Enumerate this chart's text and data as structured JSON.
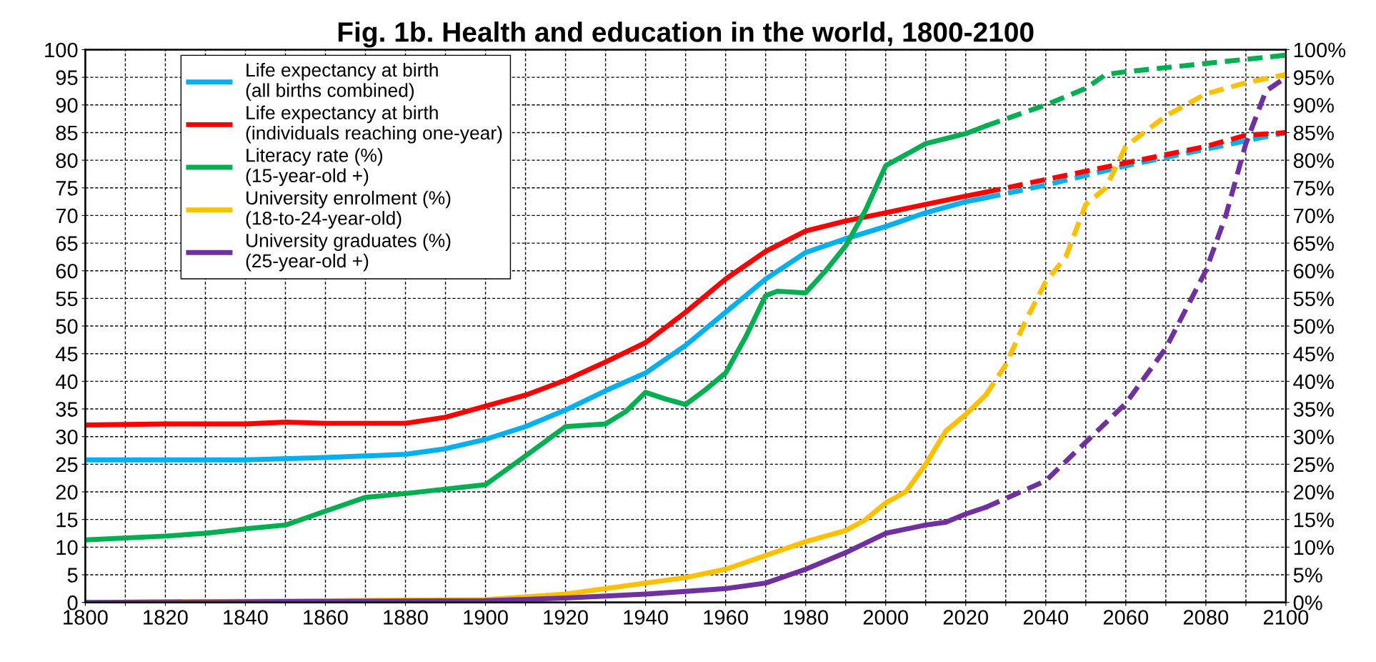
{
  "chart_data": {
    "type": "line",
    "title": "Fig. 1b. Health and education in the world, 1800-2100",
    "xlim": [
      1800,
      2100
    ],
    "xticks": [
      1800,
      {
        "value": 1810,
        "label": null
      },
      1820,
      {
        "value": 1830,
        "label": null
      },
      1840,
      {
        "value": 1850,
        "label": null
      },
      1860,
      {
        "value": 1870,
        "label": null
      },
      1880,
      {
        "value": 1890,
        "label": null
      },
      1900,
      {
        "value": 1910,
        "label": null
      },
      1920,
      {
        "value": 1930,
        "label": null
      },
      1940,
      {
        "value": 1950,
        "label": null
      },
      1960,
      {
        "value": 1970,
        "label": null
      },
      1980,
      {
        "value": 1990,
        "label": null
      },
      2000,
      {
        "value": 2010,
        "label": null
      },
      2020,
      {
        "value": 2030,
        "label": null
      },
      2040,
      {
        "value": 2050,
        "label": null
      },
      2060,
      {
        "value": 2070,
        "label": null
      },
      2080,
      {
        "value": 2090,
        "label": null
      },
      2100
    ],
    "ylim": [
      0,
      100
    ],
    "yticks": [
      0,
      5,
      10,
      15,
      20,
      25,
      30,
      35,
      40,
      45,
      50,
      55,
      60,
      65,
      70,
      75,
      80,
      85,
      90,
      95,
      100
    ],
    "y2lim": [
      0,
      100
    ],
    "y2ticks": [
      {
        "value": 0,
        "label": "0%"
      },
      {
        "value": 5,
        "label": "5%"
      },
      {
        "value": 10,
        "label": "10%"
      },
      {
        "value": 15,
        "label": "15%"
      },
      {
        "value": 20,
        "label": "20%"
      },
      {
        "value": 25,
        "label": "25%"
      },
      {
        "value": 30,
        "label": "30%"
      },
      {
        "value": 35,
        "label": "35%"
      },
      {
        "value": 40,
        "label": "40%"
      },
      {
        "value": 45,
        "label": "45%"
      },
      {
        "value": 50,
        "label": "50%"
      },
      {
        "value": 55,
        "label": "55%"
      },
      {
        "value": 60,
        "label": "60%"
      },
      {
        "value": 65,
        "label": "65%"
      },
      {
        "value": 70,
        "label": "70%"
      },
      {
        "value": 75,
        "label": "75%"
      },
      {
        "value": 80,
        "label": "80%"
      },
      {
        "value": 85,
        "label": "85%"
      },
      {
        "value": 90,
        "label": "90%"
      },
      {
        "value": 95,
        "label": "95%"
      },
      {
        "value": 100,
        "label": "100%"
      }
    ],
    "grid": true,
    "legend": "top left",
    "marker": "none",
    "series": [
      {
        "name": "Life expectancy at birth\n(all births combined)",
        "color": "#00b0f0",
        "line_style": "solid",
        "x": [
          1800,
          1820,
          1840,
          1860,
          1880,
          1890,
          1900,
          1910,
          1920,
          1930,
          1940,
          1950,
          1960,
          1970,
          1980,
          1990,
          2000,
          2010,
          2020,
          2025
        ],
        "values": [
          25.8,
          25.8,
          25.8,
          26.2,
          26.8,
          27.8,
          29.5,
          31.8,
          34.8,
          38.3,
          41.5,
          46.5,
          52.5,
          58.5,
          63.3,
          65.8,
          68,
          70.5,
          72.5,
          73.2
        ]
      },
      {
        "name": "Life expectancy at birth\n(individuals reaching one-year)",
        "color": "#ff0000",
        "line_style": "solid",
        "x": [
          1800,
          1820,
          1840,
          1850,
          1860,
          1880,
          1890,
          1900,
          1910,
          1920,
          1930,
          1940,
          1950,
          1960,
          1970,
          1980,
          1990,
          2000,
          2010,
          2020,
          2025
        ],
        "values": [
          32.1,
          32.3,
          32.3,
          32.6,
          32.4,
          32.4,
          33.5,
          35.5,
          37.5,
          40.2,
          43.5,
          47,
          52.5,
          58.5,
          63.5,
          67.2,
          69,
          70.5,
          72,
          73.5,
          74.2
        ]
      },
      {
        "name": "Literacy rate (%)\n(15-year-old +)",
        "color": "#00b050",
        "line_style": "solid",
        "x": [
          1800,
          1820,
          1830,
          1840,
          1850,
          1860,
          1870,
          1880,
          1890,
          1900,
          1910,
          1920,
          1930,
          1935,
          1940,
          1945,
          1950,
          1955,
          1960,
          1965,
          1970,
          1973,
          1980,
          1985,
          1990,
          1995,
          2000,
          2005,
          2010,
          2020,
          2025
        ],
        "values": [
          11.3,
          12,
          12.5,
          13.3,
          14,
          16.5,
          19,
          19.7,
          20.5,
          21.3,
          26.5,
          31.8,
          32.3,
          34.5,
          38,
          36.8,
          35.8,
          38.5,
          41.5,
          48,
          55.5,
          56.3,
          56,
          60,
          64.5,
          71,
          79,
          81,
          83,
          84.8,
          86.2
        ]
      },
      {
        "name": "University enrolment (%)\n(18-to-24-year-old)",
        "color": "#ffc000",
        "line_style": "solid",
        "x": [
          1800,
          1900,
          1920,
          1940,
          1950,
          1960,
          1970,
          1980,
          1990,
          1995,
          2000,
          2005,
          2010,
          2015,
          2020,
          2025
        ],
        "values": [
          0,
          0.5,
          1.5,
          3.5,
          4.5,
          6,
          8.5,
          11,
          13,
          15,
          18,
          20,
          25,
          31,
          34,
          37.5
        ]
      },
      {
        "name": "University graduates (%)\n(25-year-old +)",
        "color": "#7030a0",
        "line_style": "solid",
        "x": [
          1800,
          1900,
          1920,
          1940,
          1950,
          1960,
          1970,
          1980,
          1990,
          2000,
          2010,
          2015,
          2020,
          2025
        ],
        "values": [
          0,
          0.3,
          0.8,
          1.5,
          2,
          2.5,
          3.5,
          6,
          9,
          12.5,
          14,
          14.5,
          16,
          17.2
        ]
      },
      {
        "color": "#00b0f0",
        "line_style": "dashed",
        "x": [
          2025,
          2040,
          2060,
          2080,
          2100
        ],
        "values": [
          73.2,
          75.5,
          79,
          82,
          85
        ]
      },
      {
        "color": "#ff0000",
        "line_style": "dashed",
        "x": [
          2025,
          2040,
          2060,
          2080,
          2090,
          2100
        ],
        "values": [
          74.2,
          76.5,
          79.5,
          82.5,
          84.5,
          85
        ]
      },
      {
        "color": "#00b050",
        "line_style": "dashed",
        "x": [
          2025,
          2040,
          2050,
          2055,
          2060,
          2080,
          2100
        ],
        "values": [
          86.2,
          90,
          93,
          95.5,
          96,
          97.5,
          99
        ]
      },
      {
        "color": "#ffc000",
        "line_style": "dashed",
        "x": [
          2025,
          2030,
          2035,
          2040,
          2045,
          2050,
          2055,
          2060,
          2070,
          2080,
          2090,
          2100
        ],
        "values": [
          37.5,
          43,
          51,
          58,
          62.5,
          72,
          75,
          82.5,
          88,
          92,
          94,
          95.5
        ]
      },
      {
        "color": "#7030a0",
        "line_style": "dashed",
        "x": [
          2025,
          2040,
          2050,
          2060,
          2070,
          2080,
          2085,
          2090,
          2095,
          2100
        ],
        "values": [
          17.2,
          22,
          29,
          36,
          46,
          60,
          70,
          83,
          92.5,
          95
        ]
      }
    ]
  }
}
